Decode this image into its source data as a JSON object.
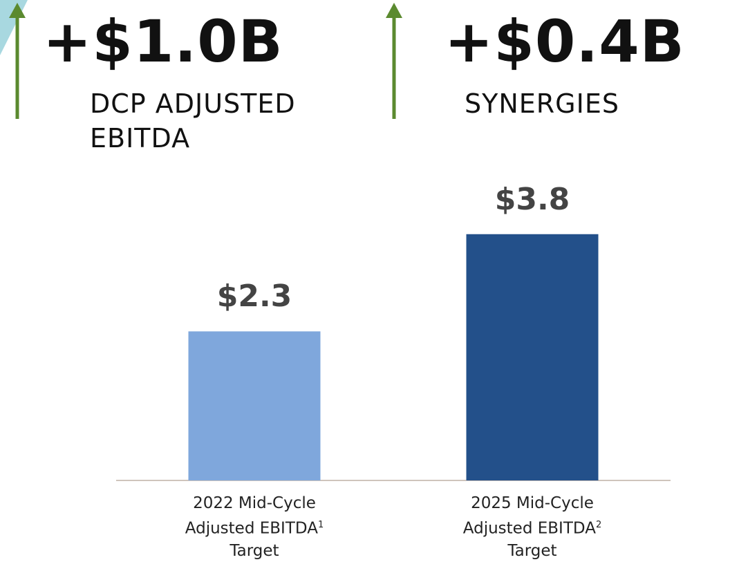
{
  "highlights": [
    {
      "value": "+$1.0B",
      "label": "DCP ADJUSTED EBITDA"
    },
    {
      "value": "+$0.4B",
      "label": "SYNERGIES"
    }
  ],
  "chart_data": {
    "type": "bar",
    "categories": [
      "2022 Mid-Cycle Adjusted EBITDA",
      "2025 Mid-Cycle Adjusted EBITDA"
    ],
    "footnotes": [
      "1",
      "2"
    ],
    "category_suffix": "Target",
    "values": [
      2.3,
      3.8
    ],
    "value_labels": [
      "$2.3",
      "$3.8"
    ],
    "colors": [
      "#7fa7dc",
      "#23508a"
    ],
    "ylim": [
      0,
      4
    ]
  }
}
